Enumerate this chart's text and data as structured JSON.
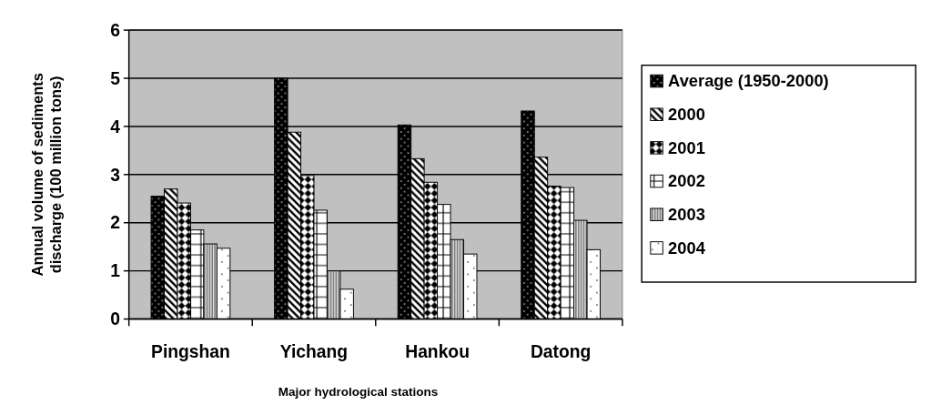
{
  "chart_data": {
    "type": "bar",
    "xlabel": "Major hydrological stations",
    "ylabel": "Annual volume of sediments discharge (100 million tons)",
    "categories": [
      "Pingshan",
      "Yichang",
      "Hankou",
      "Datong"
    ],
    "series": [
      {
        "name": "Average (1950-2000)",
        "color": "#000000",
        "values": [
          2.55,
          5.0,
          4.03,
          4.32
        ]
      },
      {
        "name": "2000",
        "color": "#000000",
        "values": [
          2.7,
          3.88,
          3.33,
          3.36
        ]
      },
      {
        "name": "2001",
        "color": "#000000",
        "values": [
          2.41,
          2.98,
          2.84,
          2.76
        ]
      },
      {
        "name": "2002",
        "color": "#000000",
        "values": [
          1.85,
          2.26,
          2.38,
          2.73
        ]
      },
      {
        "name": "2003",
        "color": "#000000",
        "values": [
          1.56,
          1.0,
          1.65,
          2.05
        ]
      },
      {
        "name": "2004",
        "color": "#000000",
        "values": [
          1.47,
          0.62,
          1.35,
          1.44
        ]
      }
    ],
    "ylim": [
      0,
      6
    ],
    "yticks": [
      0,
      1,
      2,
      3,
      4,
      5,
      6
    ],
    "grid": "y",
    "legend": "right"
  }
}
